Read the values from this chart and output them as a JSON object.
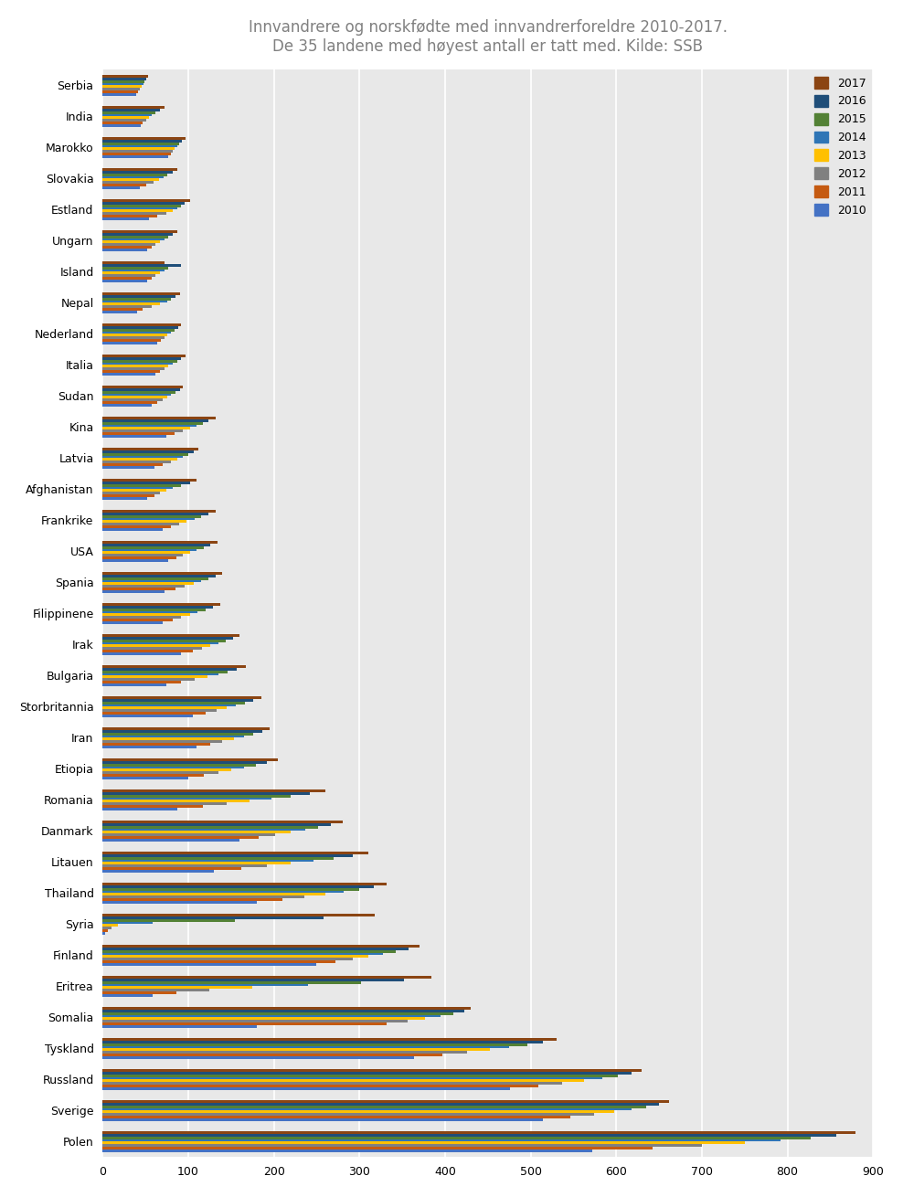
{
  "title": "Innvandrere og norskfødte med innvandrerforeldre 2010-2017.\nDe 35 landene med høyest antall er tatt med. Kilde: SSB",
  "years": [
    "2017",
    "2016",
    "2015",
    "2014",
    "2013",
    "2012",
    "2011",
    "2010"
  ],
  "colors": {
    "2017": "#8B4513",
    "2016": "#1F4E79",
    "2015": "#538135",
    "2014": "#2E75B6",
    "2013": "#FFC000",
    "2012": "#808080",
    "2011": "#C55A11",
    "2010": "#4472C4"
  },
  "countries_top_to_bottom": [
    "Serbia",
    "India",
    "Marokko",
    "Slovakia",
    "Estland",
    "Ungarn",
    "Island",
    "Nepal",
    "Nederland",
    "Italia",
    "Sudan",
    "Kina",
    "Latvia",
    "Afghanistan",
    "Frankrike",
    "USA",
    "Spania",
    "Filippinene",
    "Irak",
    "Bulgaria",
    "Storbritannia",
    "Iran",
    "Etiopia",
    "Romania",
    "Danmark",
    "Litauen",
    "Thailand",
    "Syria",
    "Finland",
    "Eritrea",
    "Somalia",
    "Tyskland",
    "Russland",
    "Sverige",
    "Polen"
  ],
  "data": {
    "Serbia": {
      "2017": 53,
      "2016": 51,
      "2015": 49,
      "2014": 48,
      "2013": 46,
      "2012": 43,
      "2011": 41,
      "2010": 39
    },
    "India": {
      "2017": 72,
      "2016": 67,
      "2015": 62,
      "2014": 57,
      "2013": 54,
      "2012": 51,
      "2011": 47,
      "2010": 44
    },
    "Marokko": {
      "2017": 97,
      "2016": 93,
      "2015": 89,
      "2014": 87,
      "2013": 84,
      "2012": 82,
      "2011": 80,
      "2010": 77
    },
    "Slovakia": {
      "2017": 87,
      "2016": 82,
      "2015": 76,
      "2014": 71,
      "2013": 66,
      "2012": 59,
      "2011": 51,
      "2010": 43
    },
    "Estland": {
      "2017": 102,
      "2016": 96,
      "2015": 91,
      "2014": 87,
      "2013": 82,
      "2012": 74,
      "2011": 64,
      "2010": 54
    },
    "Ungarn": {
      "2017": 87,
      "2016": 82,
      "2015": 77,
      "2014": 72,
      "2013": 67,
      "2012": 62,
      "2011": 57,
      "2010": 52
    },
    "Island": {
      "2017": 72,
      "2016": 92,
      "2015": 77,
      "2014": 72,
      "2013": 67,
      "2012": 62,
      "2011": 57,
      "2010": 52
    },
    "Nepal": {
      "2017": 90,
      "2016": 85,
      "2015": 80,
      "2014": 75,
      "2013": 67,
      "2012": 57,
      "2011": 47,
      "2010": 40
    },
    "Nederland": {
      "2017": 92,
      "2016": 88,
      "2015": 84,
      "2014": 80,
      "2013": 76,
      "2012": 72,
      "2011": 68,
      "2010": 64
    },
    "Italia": {
      "2017": 97,
      "2016": 92,
      "2015": 87,
      "2014": 82,
      "2013": 77,
      "2012": 72,
      "2011": 67,
      "2010": 62
    },
    "Sudan": {
      "2017": 94,
      "2016": 90,
      "2015": 85,
      "2014": 80,
      "2013": 75,
      "2012": 70,
      "2011": 64,
      "2010": 57
    },
    "Kina": {
      "2017": 132,
      "2016": 124,
      "2015": 117,
      "2014": 110,
      "2013": 102,
      "2012": 94,
      "2011": 84,
      "2010": 74
    },
    "Latvia": {
      "2017": 112,
      "2016": 106,
      "2015": 100,
      "2014": 94,
      "2013": 87,
      "2012": 80,
      "2011": 70,
      "2010": 60
    },
    "Afghanistan": {
      "2017": 110,
      "2016": 102,
      "2015": 92,
      "2014": 82,
      "2013": 74,
      "2012": 67,
      "2011": 60,
      "2010": 52
    },
    "Frankrike": {
      "2017": 132,
      "2016": 124,
      "2015": 115,
      "2014": 107,
      "2013": 98,
      "2012": 89,
      "2011": 80,
      "2010": 70
    },
    "USA": {
      "2017": 134,
      "2016": 126,
      "2015": 118,
      "2014": 110,
      "2013": 102,
      "2012": 94,
      "2011": 86,
      "2010": 77
    },
    "Spania": {
      "2017": 140,
      "2016": 132,
      "2015": 124,
      "2014": 115,
      "2013": 106,
      "2012": 96,
      "2011": 85,
      "2010": 72
    },
    "Filippinene": {
      "2017": 137,
      "2016": 129,
      "2015": 120,
      "2014": 111,
      "2013": 102,
      "2012": 92,
      "2011": 82,
      "2010": 70
    },
    "Irak": {
      "2017": 160,
      "2016": 152,
      "2015": 144,
      "2014": 135,
      "2013": 126,
      "2012": 116,
      "2011": 105,
      "2010": 92
    },
    "Bulgaria": {
      "2017": 167,
      "2016": 157,
      "2015": 146,
      "2014": 135,
      "2013": 122,
      "2012": 108,
      "2011": 92,
      "2010": 74
    },
    "Storbritannia": {
      "2017": 185,
      "2016": 176,
      "2015": 166,
      "2014": 156,
      "2013": 145,
      "2012": 133,
      "2011": 120,
      "2010": 105
    },
    "Iran": {
      "2017": 195,
      "2016": 186,
      "2015": 176,
      "2014": 165,
      "2013": 153,
      "2012": 140,
      "2011": 126,
      "2010": 110
    },
    "Etiopia": {
      "2017": 205,
      "2016": 192,
      "2015": 179,
      "2014": 165,
      "2013": 150,
      "2012": 135,
      "2011": 118,
      "2010": 100
    },
    "Romania": {
      "2017": 260,
      "2016": 242,
      "2015": 220,
      "2014": 197,
      "2013": 172,
      "2012": 145,
      "2011": 117,
      "2010": 87
    },
    "Danmark": {
      "2017": 280,
      "2016": 267,
      "2015": 252,
      "2014": 237,
      "2013": 220,
      "2012": 202,
      "2011": 182,
      "2010": 160
    },
    "Litauen": {
      "2017": 310,
      "2016": 292,
      "2015": 270,
      "2014": 246,
      "2013": 220,
      "2012": 192,
      "2011": 162,
      "2010": 130
    },
    "Thailand": {
      "2017": 332,
      "2016": 317,
      "2015": 300,
      "2014": 282,
      "2013": 260,
      "2012": 236,
      "2011": 210,
      "2010": 180
    },
    "Syria": {
      "2017": 318,
      "2016": 258,
      "2015": 155,
      "2014": 58,
      "2013": 18,
      "2012": 10,
      "2011": 6,
      "2010": 3
    },
    "Finland": {
      "2017": 370,
      "2016": 357,
      "2015": 342,
      "2014": 327,
      "2013": 310,
      "2012": 292,
      "2011": 272,
      "2010": 250
    },
    "Eritrea": {
      "2017": 384,
      "2016": 352,
      "2015": 302,
      "2014": 240,
      "2013": 175,
      "2012": 125,
      "2011": 86,
      "2010": 58
    },
    "Somalia": {
      "2017": 430,
      "2016": 422,
      "2015": 410,
      "2014": 395,
      "2013": 377,
      "2012": 356,
      "2011": 332,
      "2010": 180
    },
    "Tyskland": {
      "2017": 530,
      "2016": 514,
      "2015": 496,
      "2014": 475,
      "2013": 452,
      "2012": 426,
      "2011": 397,
      "2010": 364
    },
    "Russland": {
      "2017": 630,
      "2016": 618,
      "2015": 602,
      "2014": 584,
      "2013": 562,
      "2012": 537,
      "2011": 509,
      "2010": 476
    },
    "Sverige": {
      "2017": 662,
      "2016": 650,
      "2015": 635,
      "2014": 618,
      "2013": 598,
      "2012": 574,
      "2011": 546,
      "2010": 514
    },
    "Polen": {
      "2017": 880,
      "2016": 857,
      "2015": 827,
      "2014": 792,
      "2013": 750,
      "2012": 700,
      "2011": 642,
      "2010": 572
    }
  },
  "xlim": [
    0,
    900
  ],
  "xticks": [
    0,
    100,
    200,
    300,
    400,
    500,
    600,
    700,
    800,
    900
  ],
  "background_color": "#FFFFFF",
  "plot_bg_color": "#E8E8E8",
  "grid_color": "#FFFFFF",
  "title_color": "#808080",
  "title_fontsize": 12,
  "tick_fontsize": 9,
  "label_fontsize": 9
}
